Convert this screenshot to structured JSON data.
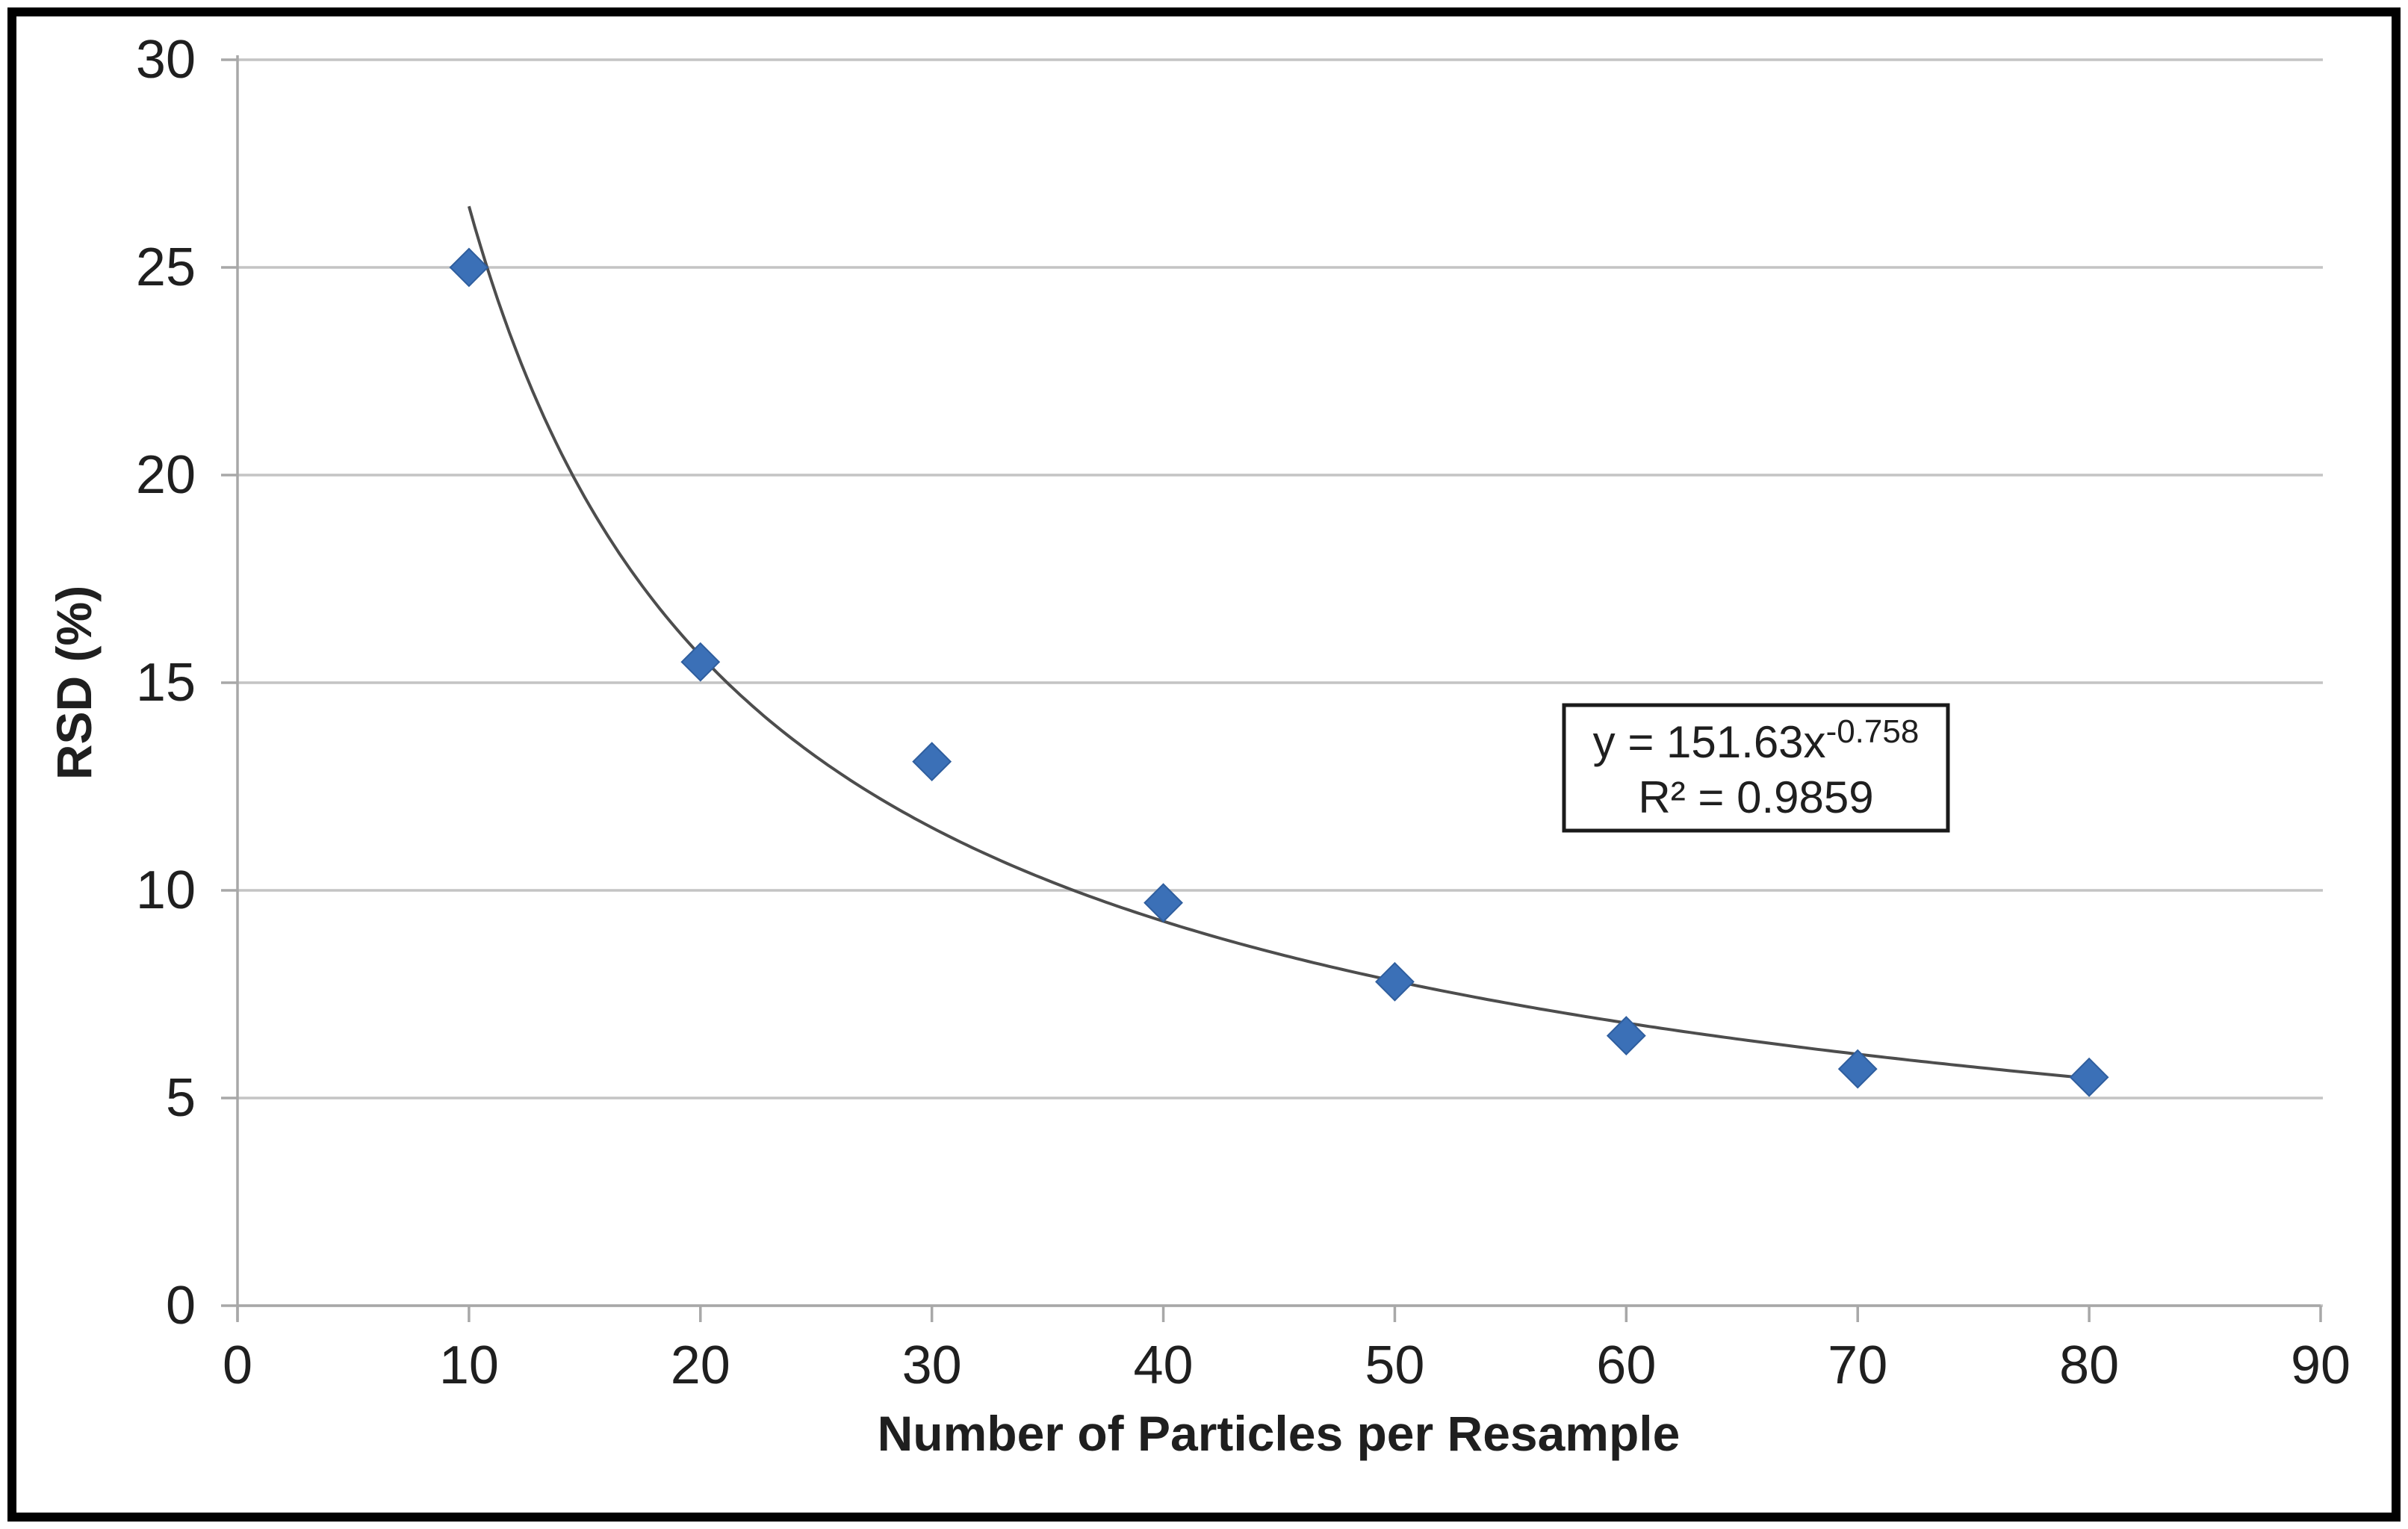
{
  "figure": {
    "background": "#FFFFFF",
    "border_color": "#000000"
  },
  "chart_data": {
    "type": "scatter",
    "title": "",
    "xlabel": "Number of Particles per Resample",
    "ylabel": "RSD (%)",
    "xlim": [
      0,
      90
    ],
    "ylim": [
      0,
      30
    ],
    "xticks": [
      0,
      10,
      20,
      30,
      40,
      50,
      60,
      70,
      80,
      90
    ],
    "yticks": [
      0,
      5,
      10,
      15,
      20,
      25,
      30
    ],
    "grid": "horizontal-only",
    "legend": "none",
    "marker": "diamond",
    "points": [
      {
        "x": 10,
        "y": 25.0
      },
      {
        "x": 20,
        "y": 15.5
      },
      {
        "x": 30,
        "y": 13.1
      },
      {
        "x": 40,
        "y": 9.7
      },
      {
        "x": 50,
        "y": 7.8
      },
      {
        "x": 60,
        "y": 6.5
      },
      {
        "x": 70,
        "y": 5.7
      },
      {
        "x": 80,
        "y": 5.5
      }
    ],
    "trendline": {
      "type": "power",
      "coefficient": 151.63,
      "exponent": -0.758,
      "x_start": 10,
      "x_end": 80.5,
      "equation_base": "y = 151.63x",
      "equation_superscript": "-0.758",
      "r_squared": "R² = 0.9859"
    },
    "colors": {
      "marker": "#3B70B7",
      "marker_edge": "#2F5E9E",
      "trendline": "#4D4D4D",
      "gridline": "#C4C4C4",
      "axis": "#A8A8A8",
      "text": "#1F1F1F",
      "annotation_border": "#1A1A1A",
      "annotation_bg": "#FFFFFF"
    }
  }
}
